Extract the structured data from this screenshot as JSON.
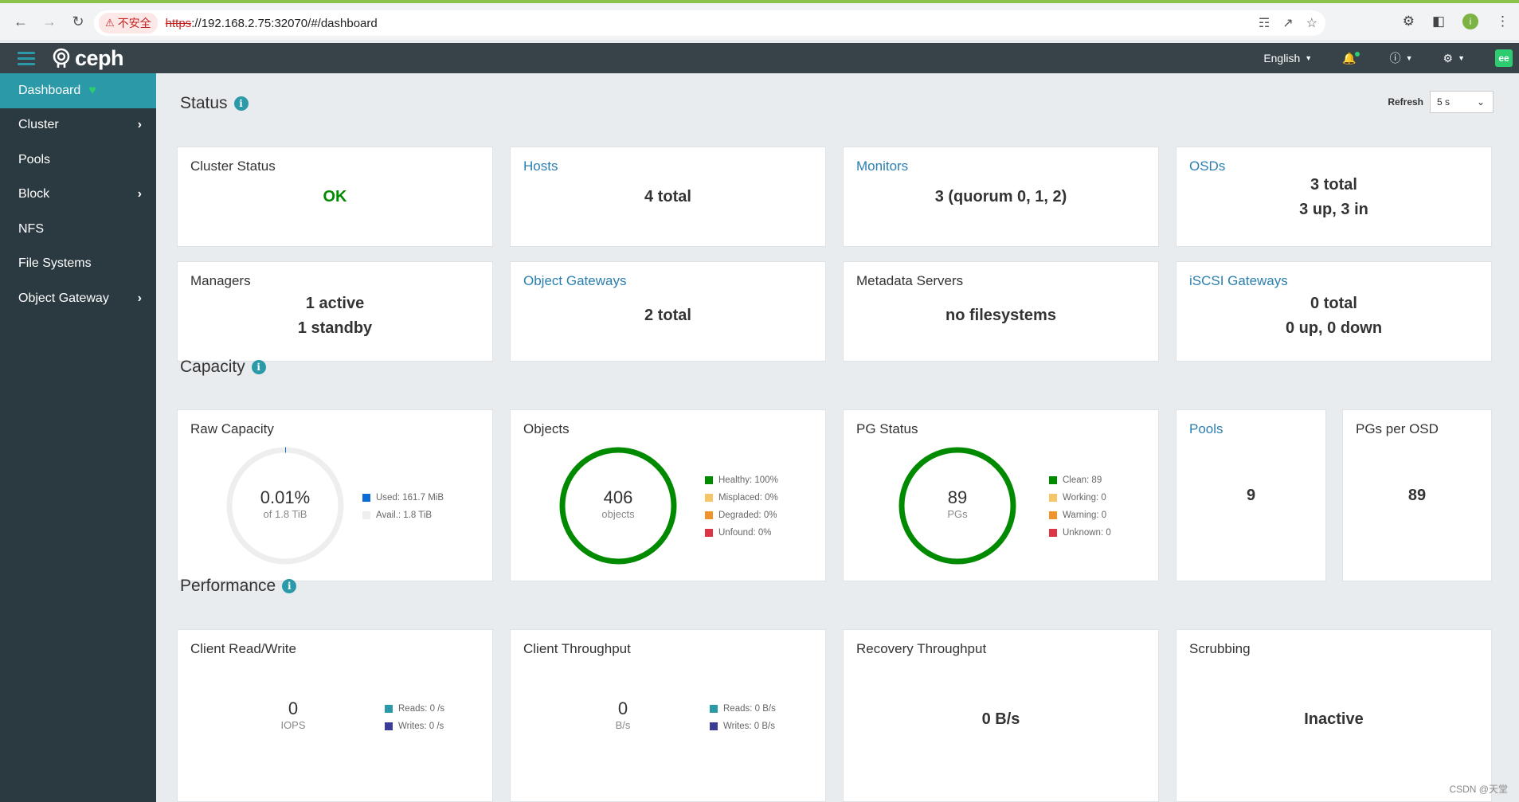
{
  "browser": {
    "insecure_label": "不安全",
    "url_scheme": "https",
    "url_rest": "://192.168.2.75:32070/#/dashboard",
    "profile_initial": "i"
  },
  "header": {
    "brand": "ceph",
    "language": "English"
  },
  "sidebar": {
    "items": [
      {
        "label": "Dashboard",
        "active": true
      },
      {
        "label": "Cluster",
        "has_submenu": true
      },
      {
        "label": "Pools"
      },
      {
        "label": "Block",
        "has_submenu": true
      },
      {
        "label": "NFS"
      },
      {
        "label": "File Systems"
      },
      {
        "label": "Object Gateway",
        "has_submenu": true
      }
    ]
  },
  "refresh": {
    "label": "Refresh",
    "value": "5 s"
  },
  "status": {
    "title": "Status",
    "cluster_status": {
      "title": "Cluster Status",
      "value": "OK"
    },
    "hosts": {
      "title": "Hosts",
      "value": "4 total"
    },
    "monitors": {
      "title": "Monitors",
      "value": "3 (quorum 0, 1, 2)"
    },
    "osds": {
      "title": "OSDs",
      "line1": "3 total",
      "line2": "3 up, 3 in"
    },
    "managers": {
      "title": "Managers",
      "line1": "1 active",
      "line2": "1 standby"
    },
    "object_gateways": {
      "title": "Object Gateways",
      "value": "2 total"
    },
    "metadata_servers": {
      "title": "Metadata Servers",
      "value": "no filesystems"
    },
    "iscsi_gateways": {
      "title": "iSCSI Gateways",
      "line1": "0 total",
      "line2": "0 up, 0 down"
    }
  },
  "capacity": {
    "title": "Capacity",
    "raw_capacity": {
      "title": "Raw Capacity",
      "percent": "0.01%",
      "sub": "of 1.8 TiB",
      "legend": [
        "Used: 161.7 MiB",
        "Avail.: 1.8 TiB"
      ]
    },
    "objects": {
      "title": "Objects",
      "value": "406",
      "sub": "objects",
      "legend": [
        "Healthy: 100%",
        "Misplaced: 0%",
        "Degraded: 0%",
        "Unfound: 0%"
      ]
    },
    "pg_status": {
      "title": "PG Status",
      "value": "89",
      "sub": "PGs",
      "legend": [
        "Clean: 89",
        "Working: 0",
        "Warning: 0",
        "Unknown: 0"
      ]
    },
    "pools": {
      "title": "Pools",
      "value": "9"
    },
    "pgs_per_osd": {
      "title": "PGs per OSD",
      "value": "89"
    }
  },
  "performance": {
    "title": "Performance",
    "client_rw": {
      "title": "Client Read/Write",
      "value": "0",
      "unit": "IOPS",
      "legend": [
        "Reads: 0 /s",
        "Writes: 0 /s"
      ]
    },
    "client_throughput": {
      "title": "Client Throughput",
      "value": "0",
      "unit": "B/s",
      "legend": [
        "Reads: 0 B/s",
        "Writes: 0 B/s"
      ]
    },
    "recovery_throughput": {
      "title": "Recovery Throughput",
      "value": "0 B/s"
    },
    "scrubbing": {
      "title": "Scrubbing",
      "value": "Inactive"
    }
  },
  "colors": {
    "accent": "#2b99a8",
    "ok_green": "#008a00",
    "used_blue": "#0b6cd6",
    "misplaced": "#f5c56a",
    "degraded": "#f0932b",
    "unfound": "#dc3545",
    "reads": "#2b99a8",
    "writes": "#3b3b98"
  },
  "watermark": "CSDN @天堂"
}
